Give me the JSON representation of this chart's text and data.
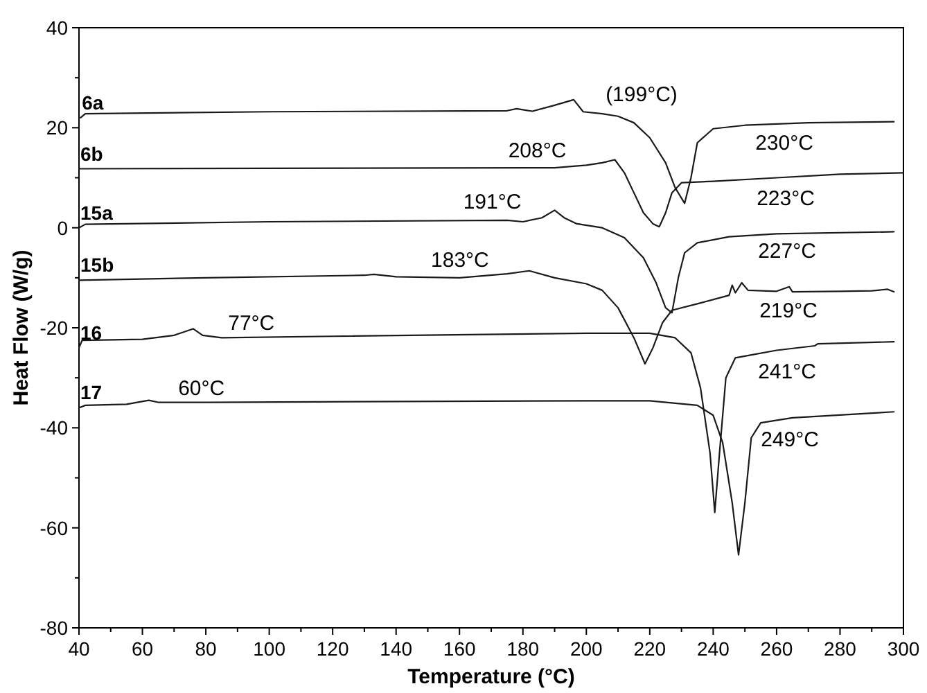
{
  "chart_data": {
    "type": "line",
    "xlabel": "Temperature (°C)",
    "ylabel": "Heat Flow (W/g)",
    "xlim": [
      40,
      300
    ],
    "ylim": [
      -80,
      40
    ],
    "xticks": [
      40,
      {
        "value": 50,
        "label": null
      },
      60,
      {
        "value": 70,
        "label": null
      },
      80,
      {
        "value": 90,
        "label": null
      },
      100,
      {
        "value": 110,
        "label": null
      },
      120,
      {
        "value": 130,
        "label": null
      },
      140,
      {
        "value": 150,
        "label": null
      },
      160,
      {
        "value": 170,
        "label": null
      },
      180,
      {
        "value": 190,
        "label": null
      },
      200,
      {
        "value": 210,
        "label": null
      },
      220,
      {
        "value": 230,
        "label": null
      },
      240,
      {
        "value": 250,
        "label": null
      },
      260,
      {
        "value": 270,
        "label": null
      },
      280,
      {
        "value": 290,
        "label": null
      },
      300
    ],
    "yticks": [
      -80,
      {
        "value": -70,
        "label": null
      },
      -60,
      {
        "value": -50,
        "label": null
      },
      -40,
      {
        "value": -30,
        "label": null
      },
      -20,
      {
        "value": -10,
        "label": null
      },
      0,
      {
        "value": 10,
        "label": null
      },
      20,
      {
        "value": 30,
        "label": null
      },
      40
    ],
    "grid": false,
    "marker": "none",
    "line_style": "solid",
    "series": [
      {
        "name": "6a",
        "color": "#1a1a1a",
        "x": [
          40.5,
          42,
          100,
          175,
          178,
          183,
          190,
          196,
          199,
          205,
          210,
          215,
          220,
          225,
          228,
          231,
          233,
          235,
          240,
          250,
          270,
          297
        ],
        "values": [
          22,
          22.8,
          23.2,
          23.4,
          23.8,
          23.3,
          24.5,
          25.6,
          23.2,
          22.8,
          22.3,
          21,
          18,
          13,
          8,
          4.9,
          10,
          17,
          19.8,
          20.5,
          21,
          21.2
        ]
      },
      {
        "name": "6b",
        "color": "#1a1a1a",
        "x": [
          40,
          100,
          190,
          200,
          205,
          209,
          212,
          215,
          218,
          221,
          223,
          225,
          227,
          230,
          240,
          260,
          280,
          300
        ],
        "values": [
          11.8,
          11.9,
          12,
          12.5,
          13,
          13.6,
          11,
          7,
          3,
          0.8,
          0.2,
          3,
          7,
          9,
          9.3,
          10,
          10.7,
          11
        ]
      },
      {
        "name": "15a",
        "color": "#1a1a1a",
        "x": [
          40,
          42,
          100,
          175,
          180,
          186,
          190,
          193,
          197,
          205,
          212,
          218,
          222,
          225,
          227,
          229,
          231,
          235,
          245,
          260,
          297
        ],
        "values": [
          0,
          0.7,
          1.2,
          1.5,
          1.2,
          2,
          3.5,
          2,
          0.8,
          0,
          -2,
          -6,
          -11,
          -16,
          -17,
          -10,
          -5,
          -3,
          -1.8,
          -1.2,
          -0.8
        ]
      },
      {
        "name": "15b",
        "color": "#1a1a1a",
        "x": [
          40,
          80,
          130,
          133,
          140,
          160,
          175,
          182,
          190,
          200,
          205,
          210,
          215,
          218.5,
          221,
          224,
          227,
          235,
          245,
          246,
          247,
          249,
          251,
          260,
          264,
          265,
          280,
          290,
          295,
          297
        ],
        "values": [
          -10.5,
          -10,
          -9.5,
          -9.3,
          -9.8,
          -10,
          -9.2,
          -8.6,
          -10,
          -11.2,
          -12.5,
          -16,
          -22,
          -27.2,
          -24,
          -19,
          -16.5,
          -15.2,
          -13.5,
          -11.5,
          -13,
          -11,
          -12.5,
          -12.7,
          -11.8,
          -12.8,
          -12.7,
          -12.6,
          -12.3,
          -12.8
        ]
      },
      {
        "name": "16",
        "color": "#1a1a1a",
        "x": [
          40,
          41,
          60,
          70,
          76,
          79,
          85,
          120,
          200,
          220,
          228,
          233,
          236,
          239,
          240.5,
          242,
          244,
          247,
          260,
          272,
          273,
          297
        ],
        "values": [
          -24,
          -22.5,
          -22.3,
          -21.5,
          -20.2,
          -21.5,
          -22,
          -21.7,
          -21.1,
          -21.1,
          -22,
          -25,
          -32,
          -45,
          -56.9,
          -45,
          -30,
          -26,
          -24.5,
          -23.6,
          -23.2,
          -22.8
        ]
      },
      {
        "name": "17",
        "color": "#1a1a1a",
        "x": [
          40,
          42,
          55,
          62,
          65,
          80,
          200,
          220,
          235,
          240,
          243,
          246,
          248,
          250,
          252,
          255,
          265,
          297
        ],
        "values": [
          -36,
          -35.5,
          -35.3,
          -34.5,
          -34.9,
          -34.9,
          -34.6,
          -34.6,
          -35.5,
          -37.5,
          -43,
          -55,
          -65.4,
          -55,
          -42,
          -39,
          -38,
          -36.8
        ]
      }
    ],
    "annotations": [
      {
        "text": "(199°C)",
        "x": 196,
        "y": 25.6
      },
      {
        "text": "208°C",
        "x": 209,
        "y": 13.6
      },
      "230°C",
      {
        "text": "191°C",
        "x": 190,
        "y": 3.5
      },
      "223°C",
      {
        "text": "183°C",
        "x": 182,
        "y": -8.6
      },
      "227°C",
      "219°C",
      {
        "text": "77°C",
        "x": 76,
        "y": -20.2
      },
      "241°C",
      {
        "text": "60°C",
        "x": 62,
        "y": -34.5
      },
      "249°C"
    ]
  }
}
